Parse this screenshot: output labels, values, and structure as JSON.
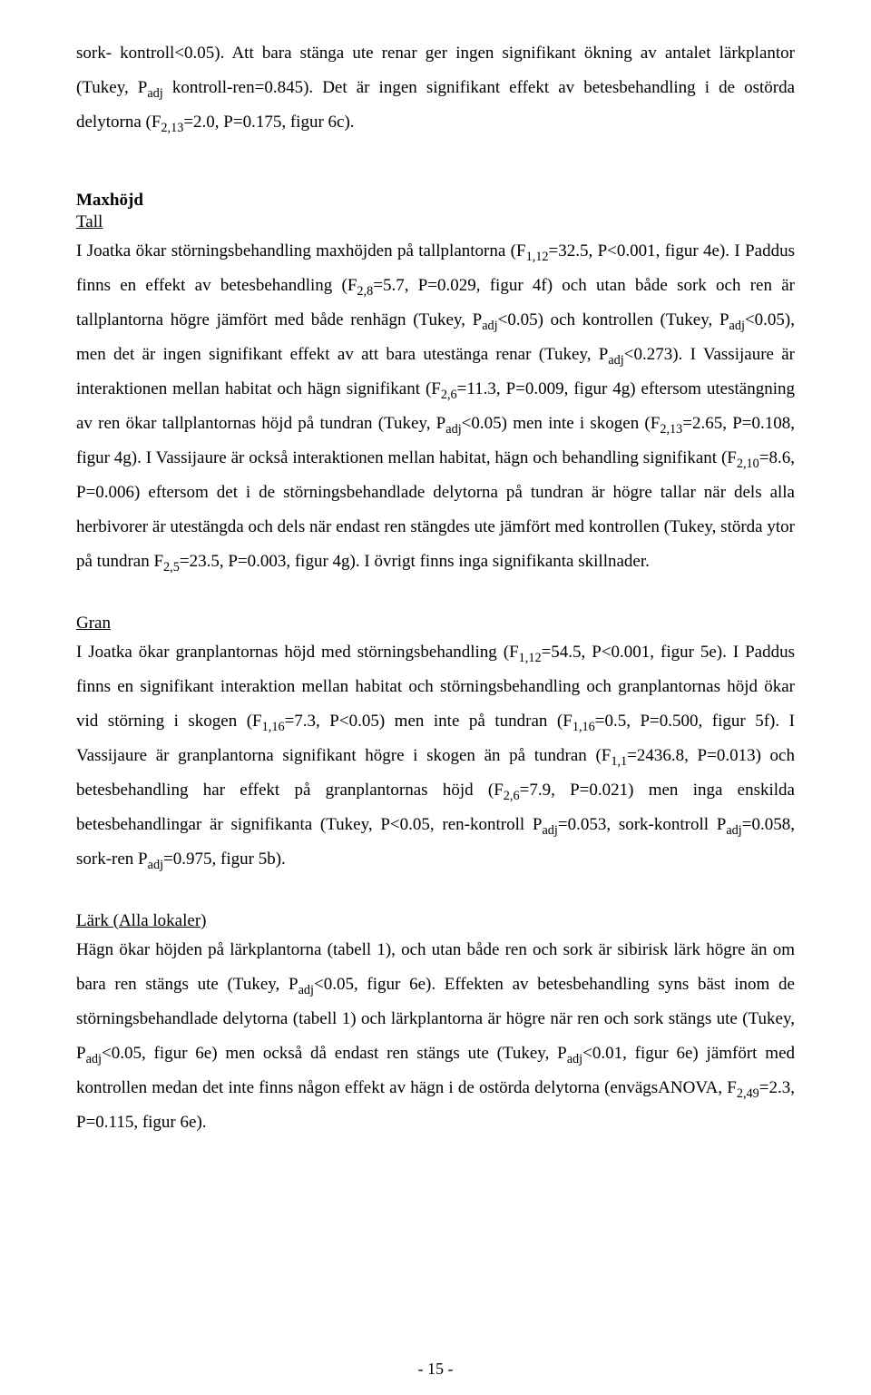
{
  "para1": {
    "t1": "sork- kontroll<0.05). Att bara stänga ute renar ger ingen signifikant ökning av antalet lärkplantor (Tukey, P",
    "adj": "adj",
    "t2": " kontroll-ren=0.845). Det är ingen signifikant effekt av betesbehandling i de ostörda delytorna (F",
    "s1": "2,13",
    "t3": "=2.0, P=0.175, figur 6c)."
  },
  "maxhojd_heading": "Maxhöjd",
  "tall_heading": "Tall",
  "para2": {
    "t1": "I Joatka ökar störningsbehandling maxhöjden på tallplantorna (F",
    "s1": "1,12",
    "t2": "=32.5, P<0.001, figur 4e). I Paddus finns en effekt av betesbehandling (F",
    "s2": "2,8",
    "t3": "=5.7, P=0.029, figur 4f) och utan både sork och ren är tallplantorna högre jämfört med både renhägn (Tukey, P",
    "adj1": "adj",
    "t4": "<0.05) och kontrollen (Tukey, P",
    "adj2": "adj",
    "t5": "<0.05), men det är ingen signifikant effekt av att bara utestänga renar (Tukey, P",
    "adj3": "adj",
    "t6": "<0.273). I Vassijaure är interaktionen mellan habitat och hägn signifikant (F",
    "s3": "2,6",
    "t7": "=11.3, P=0.009, figur 4g) eftersom utestängning av ren ökar tallplantornas höjd på tundran (Tukey, P",
    "adj4": "adj",
    "t8": "<0.05) men inte i skogen (F",
    "s4": "2,13",
    "t9": "=2.65, P=0.108, figur 4g). I Vassijaure är också interaktionen mellan habitat, hägn och behandling signifikant (F",
    "s5": "2,10",
    "t10": "=8.6, P=0.006) eftersom det i de störningsbehandlade delytorna på tundran är högre tallar när dels alla herbivorer är utestängda och dels när endast ren stängdes ute jämfört med kontrollen (Tukey, störda ytor på tundran F",
    "s6": "2,5",
    "t11": "=23.5, P=0.003, figur 4g). I övrigt finns inga signifikanta skillnader."
  },
  "gran_heading": "Gran",
  "para3": {
    "t1": "I Joatka ökar granplantornas höjd med störningsbehandling (F",
    "s1": "1,12",
    "t2": "=54.5, P<0.001, figur 5e). I Paddus finns en signifikant interaktion mellan habitat och störningsbehandling och granplantornas höjd ökar vid störning i skogen (F",
    "s2": "1,16",
    "t3": "=7.3, P<0.05) men inte på tundran (F",
    "s3": "1,16",
    "t4": "=0.5, P=0.500, figur 5f). I Vassijaure är granplantorna signifikant högre i skogen än på tundran (F",
    "s4": "1,1",
    "t5": "=2436.8, P=0.013) och betesbehandling har effekt på granplantornas höjd (F",
    "s5": "2,6",
    "t6": "=7.9, P=0.021) men inga enskilda betesbehandlingar är signifikanta (Tukey, P<0.05, ren-kontroll P",
    "adj1": "adj",
    "t7": "=0.053, sork-kontroll P",
    "adj2": "adj",
    "t8": "=0.058, sork-ren P",
    "adj3": "adj",
    "t9": "=0.975, figur 5b)."
  },
  "lark_heading": "Lärk (Alla lokaler)",
  "para4": {
    "t1": "Hägn ökar höjden på lärkplantorna (tabell 1), och utan både ren och sork är sibirisk lärk högre än om bara ren stängs ute (Tukey, P",
    "adj1": "adj",
    "t2": "<0.05, figur 6e). Effekten av betesbehandling syns bäst inom de störningsbehandlade delytorna (tabell 1) och lärkplantorna är högre när ren och sork stängs ute (Tukey, P",
    "adj2": "adj",
    "t3": "<0.05, figur 6e) men också då endast ren stängs ute (Tukey, P",
    "adj3": "adj",
    "t4": "<0.01, figur 6e) jämfört med kontrollen medan det inte finns någon effekt av hägn i de ostörda delytorna (envägsANOVA, F",
    "s1": "2,49",
    "t5": "=2.3, P=0.115, figur 6e)."
  },
  "page_number": "- 15 -"
}
